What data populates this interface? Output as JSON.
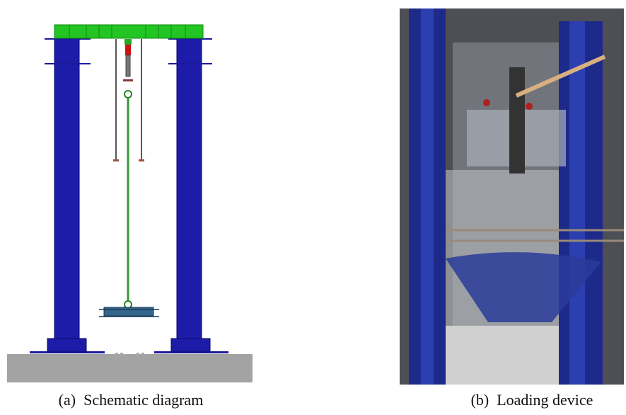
{
  "figure": {
    "panels": [
      {
        "caption": "(a)  Schematic diagram"
      },
      {
        "caption": "(b)  Loading device"
      }
    ]
  }
}
